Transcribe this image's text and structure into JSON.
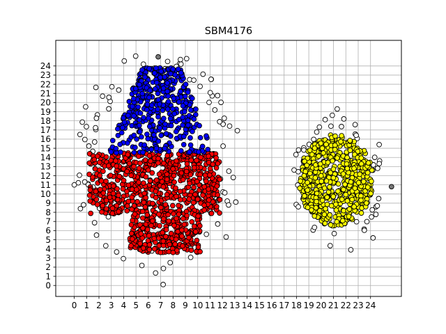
{
  "chart_data": {
    "type": "scatter",
    "title": "SBM4176",
    "xlabel": "",
    "ylabel": "",
    "xlim": [
      -1.5,
      26.5
    ],
    "ylim": [
      -1.2,
      26.8
    ],
    "grid": true,
    "legend": "none",
    "x_ticks": [
      "0",
      "1",
      "2",
      "3",
      "4",
      "5",
      "6",
      "7",
      "8",
      "9",
      "10",
      "11",
      "12",
      "13",
      "14",
      "15",
      "16",
      "17",
      "18",
      "19",
      "20",
      "21",
      "22",
      "23",
      "24"
    ],
    "y_ticks": [
      "0",
      "1",
      "2",
      "3",
      "4",
      "5",
      "6",
      "7",
      "8",
      "9",
      "10",
      "11",
      "12",
      "13",
      "14",
      "15",
      "16",
      "17",
      "18",
      "19",
      "20",
      "21",
      "22",
      "23",
      "24"
    ],
    "colors": {
      "blue": "#0000ff",
      "red": "#ff0000",
      "yellow": "#ffff00",
      "white": "#ffffff",
      "gray": "#777777",
      "edge": "#000000",
      "grid": "#b0b0b0"
    },
    "clusters": [
      {
        "color": "blue",
        "shape": "dome",
        "cx": 7.0,
        "y0": 14.5,
        "y1": 23.8,
        "w0": 4.3,
        "w1": 1.6,
        "count": 420
      },
      {
        "color": "red",
        "shape": "box",
        "x0": 1.2,
        "x1": 11.8,
        "y0": 7.8,
        "y1": 14.5,
        "count": 650
      },
      {
        "color": "red",
        "shape": "box",
        "x0": 4.5,
        "x1": 10.2,
        "y0": 3.6,
        "y1": 7.8,
        "count": 260
      },
      {
        "color": "yellow",
        "shape": "ellipse",
        "cx": 21.2,
        "cy": 11.5,
        "rx": 3.0,
        "ry": 5.0,
        "count": 620
      },
      {
        "color": "white",
        "shape": "ring",
        "cx": 6.8,
        "cy": 13.5,
        "rx": 6.2,
        "ry": 11.2,
        "count": 90
      },
      {
        "color": "white",
        "shape": "ring",
        "cx": 21.3,
        "cy": 11.5,
        "rx": 3.4,
        "ry": 6.6,
        "count": 45
      }
    ],
    "fixed_points": [
      {
        "x": 6.8,
        "y": 25.0,
        "color": "gray"
      },
      {
        "x": 25.7,
        "y": 10.8,
        "color": "gray"
      },
      {
        "x": 0.0,
        "y": 11.0,
        "color": "white"
      },
      {
        "x": 7.2,
        "y": 0.1,
        "color": "white"
      },
      {
        "x": 12.5,
        "y": 8.8,
        "color": "white"
      },
      {
        "x": 24.2,
        "y": 5.2,
        "color": "white"
      },
      {
        "x": 9.1,
        "y": 24.8,
        "color": "white"
      },
      {
        "x": 8.6,
        "y": 24.7,
        "color": "white"
      },
      {
        "x": 5.6,
        "y": 24.2,
        "color": "white"
      },
      {
        "x": 12.3,
        "y": 5.3,
        "color": "white"
      },
      {
        "x": 22.4,
        "y": 3.9,
        "color": "white"
      },
      {
        "x": 24.7,
        "y": 15.4,
        "color": "white"
      },
      {
        "x": 21.3,
        "y": 19.3,
        "color": "white"
      },
      {
        "x": 1.8,
        "y": 5.5,
        "color": "white"
      },
      {
        "x": 0.5,
        "y": 8.4,
        "color": "white"
      }
    ]
  }
}
